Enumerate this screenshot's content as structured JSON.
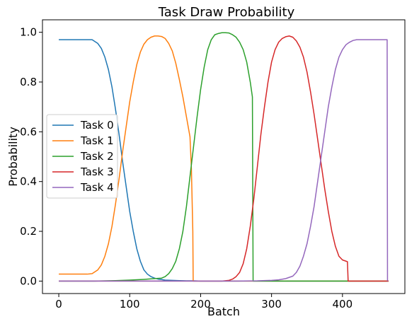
{
  "chart_data": {
    "type": "line",
    "title": "Task Draw Probability",
    "xlabel": "Batch",
    "ylabel": "Probability",
    "xlim": [
      -23,
      488
    ],
    "ylim": [
      -0.05,
      1.05
    ],
    "xticks": [
      0,
      100,
      200,
      300,
      400
    ],
    "xtick_labels": [
      "0",
      "100",
      "200",
      "300",
      "400"
    ],
    "yticks": [
      0.0,
      0.2,
      0.4,
      0.6,
      0.8,
      1.0
    ],
    "ytick_labels": [
      "0.0",
      "0.2",
      "0.4",
      "0.6",
      "0.8",
      "1.0"
    ],
    "grid": false,
    "legend_position": "center-left",
    "series": [
      {
        "name": "Task 0",
        "color": "#1f77b4",
        "x": [
          0,
          10,
          20,
          30,
          40,
          47,
          55,
          60,
          65,
          70,
          75,
          80,
          85,
          90,
          95,
          100,
          105,
          110,
          115,
          120,
          125,
          130,
          135,
          140,
          145,
          150,
          160,
          170,
          180,
          190,
          200,
          220,
          250,
          300,
          350,
          400,
          450,
          465
        ],
        "y": [
          0.97,
          0.97,
          0.97,
          0.97,
          0.97,
          0.97,
          0.955,
          0.935,
          0.9,
          0.85,
          0.78,
          0.69,
          0.59,
          0.48,
          0.38,
          0.28,
          0.2,
          0.13,
          0.08,
          0.045,
          0.028,
          0.018,
          0.012,
          0.008,
          0.006,
          0.004,
          0.003,
          0.002,
          0.001,
          0.001,
          0.0,
          0.0,
          0.0,
          0.0,
          0.0,
          0.0,
          0.0,
          0.0
        ]
      },
      {
        "name": "Task 1",
        "color": "#ff7f0e",
        "x": [
          0,
          10,
          20,
          30,
          40,
          47,
          55,
          60,
          65,
          70,
          75,
          80,
          85,
          90,
          95,
          100,
          105,
          110,
          115,
          120,
          125,
          130,
          135,
          140,
          145,
          150,
          155,
          160,
          165,
          170,
          175,
          180,
          185,
          187,
          189,
          189.5,
          200,
          220,
          250,
          300,
          350,
          400,
          450,
          465
        ],
        "y": [
          0.028,
          0.028,
          0.028,
          0.028,
          0.028,
          0.03,
          0.045,
          0.065,
          0.1,
          0.15,
          0.22,
          0.31,
          0.41,
          0.52,
          0.62,
          0.72,
          0.8,
          0.87,
          0.92,
          0.952,
          0.97,
          0.98,
          0.985,
          0.985,
          0.983,
          0.975,
          0.955,
          0.925,
          0.875,
          0.81,
          0.74,
          0.66,
          0.58,
          0.45,
          0.2,
          0.0,
          0.0,
          0.0,
          0.0,
          0.0,
          0.0,
          0.0,
          0.0,
          0.0
        ]
      },
      {
        "name": "Task 2",
        "color": "#2ca02c",
        "x": [
          0,
          50,
          80,
          100,
          120,
          135,
          145,
          150,
          155,
          160,
          165,
          170,
          175,
          180,
          185,
          190,
          195,
          200,
          205,
          210,
          215,
          220,
          225,
          230,
          235,
          240,
          245,
          250,
          255,
          260,
          265,
          270,
          273,
          274,
          280,
          300,
          350,
          400,
          450,
          465
        ],
        "y": [
          0.0,
          0.0,
          0.002,
          0.004,
          0.007,
          0.01,
          0.012,
          0.018,
          0.03,
          0.05,
          0.08,
          0.13,
          0.2,
          0.3,
          0.42,
          0.54,
          0.66,
          0.77,
          0.86,
          0.93,
          0.97,
          0.99,
          0.995,
          0.998,
          0.998,
          0.997,
          0.99,
          0.98,
          0.96,
          0.93,
          0.88,
          0.8,
          0.74,
          0.0,
          0.0,
          0.0,
          0.0,
          0.0,
          0.0,
          0.0
        ]
      },
      {
        "name": "Task 3",
        "color": "#d62728",
        "x": [
          0,
          100,
          200,
          230,
          240,
          245,
          250,
          255,
          260,
          265,
          270,
          275,
          280,
          285,
          290,
          295,
          300,
          305,
          310,
          315,
          320,
          325,
          330,
          335,
          340,
          345,
          350,
          355,
          360,
          365,
          370,
          375,
          380,
          385,
          390,
          395,
          400,
          405,
          407,
          408,
          420,
          440,
          465
        ],
        "y": [
          0.0,
          0.0,
          0.0,
          0.0,
          0.003,
          0.008,
          0.018,
          0.035,
          0.07,
          0.13,
          0.22,
          0.33,
          0.46,
          0.59,
          0.7,
          0.8,
          0.88,
          0.93,
          0.96,
          0.975,
          0.982,
          0.985,
          0.98,
          0.965,
          0.94,
          0.9,
          0.84,
          0.76,
          0.67,
          0.57,
          0.47,
          0.37,
          0.28,
          0.2,
          0.14,
          0.1,
          0.085,
          0.08,
          0.078,
          0.0,
          0.0,
          0.0,
          0.0
        ]
      },
      {
        "name": "Task 4",
        "color": "#9467bd",
        "x": [
          0,
          100,
          200,
          250,
          280,
          300,
          310,
          320,
          330,
          335,
          340,
          345,
          350,
          355,
          360,
          365,
          370,
          375,
          380,
          385,
          390,
          395,
          400,
          405,
          410,
          415,
          420,
          430,
          440,
          450,
          460,
          463,
          463.5
        ],
        "y": [
          0.0,
          0.0,
          0.0,
          0.0,
          0.001,
          0.003,
          0.005,
          0.01,
          0.02,
          0.035,
          0.06,
          0.1,
          0.15,
          0.22,
          0.3,
          0.4,
          0.5,
          0.6,
          0.7,
          0.78,
          0.85,
          0.9,
          0.93,
          0.95,
          0.96,
          0.967,
          0.97,
          0.97,
          0.97,
          0.97,
          0.97,
          0.97,
          0.0
        ]
      }
    ]
  }
}
